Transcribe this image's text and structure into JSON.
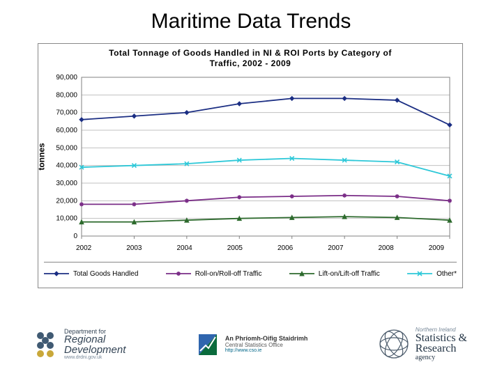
{
  "slide": {
    "title": "Maritime Data Trends"
  },
  "chart": {
    "type": "line",
    "title_line1": "Total Tonnage of Goods Handled in NI & ROI Ports by Category of",
    "title_line2": "Traffic, 2002 - 2009",
    "title_fontsize": 12,
    "ylabel": "tonnes",
    "label_fontsize": 12,
    "background_color": "#ffffff",
    "grid_color": "#c0c0c0",
    "plot_border_color": "#808080",
    "xlim": [
      0,
      7
    ],
    "ylim": [
      0,
      90000
    ],
    "ytick_step": 10000,
    "yticks": [
      "0",
      "10,000",
      "20,000",
      "30,000",
      "40,000",
      "50,000",
      "60,000",
      "70,000",
      "80,000",
      "90,000"
    ],
    "categories": [
      "2002",
      "2003",
      "2004",
      "2005",
      "2006",
      "2007",
      "2008",
      "2009"
    ],
    "series": [
      {
        "name": "Total Goods Handled",
        "marker": "diamond",
        "color": "#1b2e83",
        "values": [
          66000,
          68000,
          70000,
          75000,
          78000,
          78000,
          77000,
          63000
        ]
      },
      {
        "name": "Roll-on/Roll-off Traffic",
        "marker": "asterisk",
        "color": "#7a2d87",
        "values": [
          18000,
          18000,
          20000,
          22000,
          22500,
          23000,
          22500,
          20000
        ]
      },
      {
        "name": "Lift-on/Lift-off Traffic",
        "marker": "triangle",
        "color": "#2d6a2d",
        "values": [
          8000,
          8000,
          9000,
          10000,
          10500,
          11000,
          10500,
          9000
        ]
      },
      {
        "name": "Other*",
        "marker": "x",
        "color": "#2dc8d8",
        "values": [
          39000,
          40000,
          41000,
          43000,
          44000,
          43000,
          42000,
          34000
        ]
      }
    ],
    "line_width": 1.8,
    "marker_size": 6
  },
  "footer": {
    "dept": {
      "line1": "Department for",
      "line2a": "Regional",
      "line2b": "Development",
      "sub": "www.drdni.gov.uk"
    },
    "cso": {
      "t1": "An Phríomh-Oifig Staidrimh",
      "t2": "Central Statistics Office",
      "t3": "http://www.cso.ie"
    },
    "nisra": {
      "g1": "Northern Ireland",
      "g2a": "Statistics &",
      "g2b": "Research",
      "g3": "agency"
    }
  }
}
